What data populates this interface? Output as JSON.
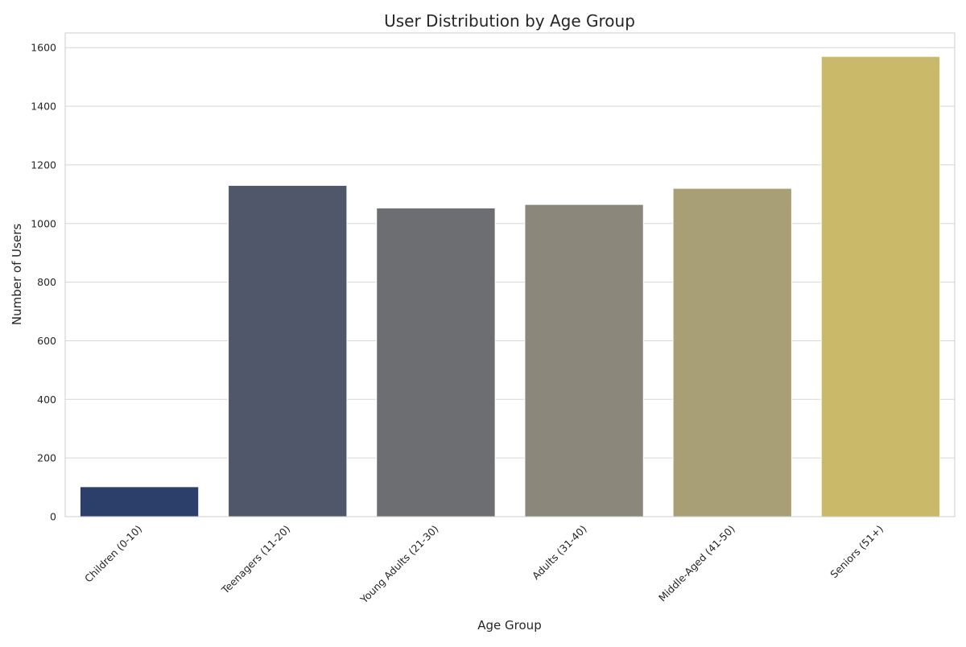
{
  "chart_data": {
    "type": "bar",
    "title": "User Distribution by Age Group",
    "xlabel": "Age Group",
    "ylabel": "Number of Users",
    "categories": [
      "Children (0-10)",
      "Teenagers (11-20)",
      "Young Adults (21-30)",
      "Adults (31-40)",
      "Middle-Aged (41-50)",
      "Seniors (51+)"
    ],
    "values": [
      102,
      1130,
      1053,
      1065,
      1120,
      1570
    ],
    "colors": [
      "#2c3f6b",
      "#51576a",
      "#6d6e72",
      "#8b877b",
      "#a89f77",
      "#c9b969"
    ],
    "ylim": [
      0,
      1650
    ],
    "yticks": [
      0,
      200,
      400,
      600,
      800,
      1000,
      1200,
      1400,
      1600
    ],
    "grid": "horizontal",
    "style": {
      "grid_color": "#d6d6d6",
      "spine_color": "#cccccc",
      "bar_edge_color": "#ffffff"
    }
  }
}
